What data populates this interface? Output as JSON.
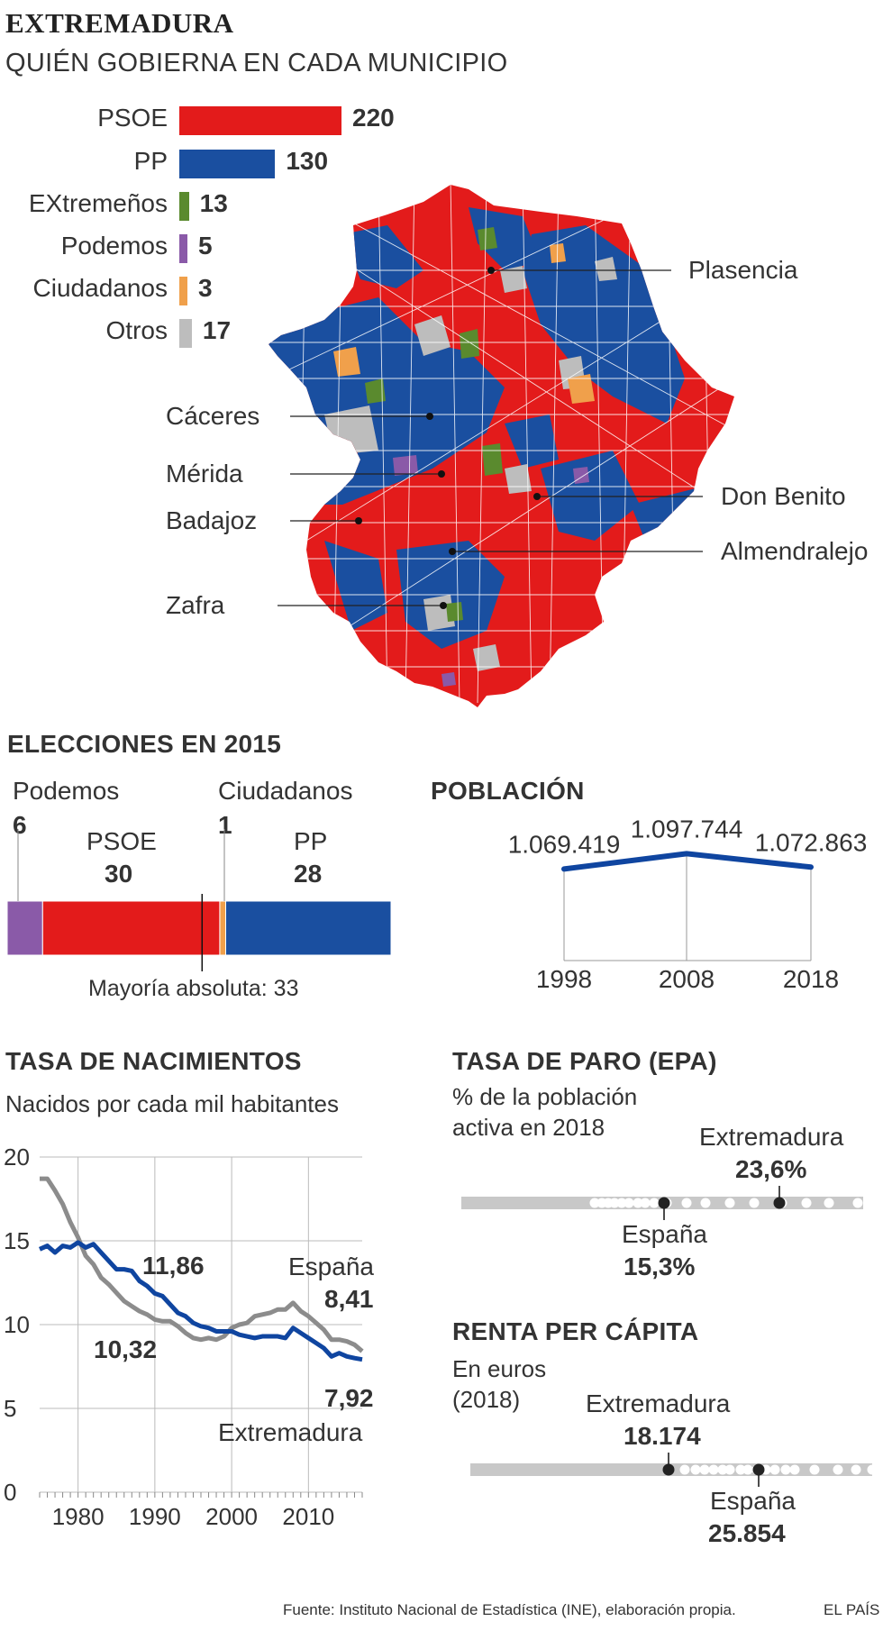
{
  "header": {
    "title": "EXTREMADURA",
    "subtitle": "QUIÉN GOBIERNA EN CADA MUNICIPIO"
  },
  "colors": {
    "psoe": "#e31b1b",
    "pp": "#1a4fa0",
    "extremenos": "#5a8a2e",
    "podemos": "#8a5aa8",
    "ciudadanos": "#f0a04b",
    "otros": "#bdbdbd",
    "espana_line": "#8c8c8c",
    "extremadura_line": "#0f45a0"
  },
  "map": {
    "cities": [
      "Plasencia",
      "Cáceres",
      "Mérida",
      "Badajoz",
      "Don Benito",
      "Almendralejo",
      "Zafra"
    ]
  },
  "chart_data": [
    {
      "type": "bar",
      "id": "municipios",
      "categories": [
        "PSOE",
        "PP",
        "EXtremeños",
        "Podemos",
        "Ciudadanos",
        "Otros"
      ],
      "values": [
        220,
        130,
        13,
        5,
        3,
        17
      ]
    },
    {
      "type": "bar",
      "id": "elecciones_2015",
      "title": "ELECCIONES EN 2015",
      "categories": [
        "Podemos",
        "PSOE",
        "Ciudadanos",
        "PP"
      ],
      "values": [
        6,
        30,
        1,
        28
      ],
      "annotation": "Mayoría absoluta: 33",
      "threshold": 33
    },
    {
      "type": "line",
      "id": "poblacion",
      "title": "POBLACIÓN",
      "x": [
        "1998",
        "2008",
        "2018"
      ],
      "values": [
        1069419,
        1097744,
        1072863
      ],
      "labels": [
        "1.069.419",
        "1.097.744",
        "1.072.863"
      ]
    },
    {
      "type": "line",
      "id": "nacimientos",
      "title": "TASA DE NACIMIENTOS",
      "subtitle": "Nacidos por cada mil habitantes",
      "xticks": [
        "1980",
        "1990",
        "2000",
        "2010"
      ],
      "yticks": [
        "0",
        "5",
        "10",
        "15",
        "20"
      ],
      "ylim": [
        0,
        20
      ],
      "xlim": [
        1975,
        2017
      ],
      "x": [
        1975,
        1976,
        1977,
        1978,
        1979,
        1980,
        1981,
        1982,
        1983,
        1984,
        1985,
        1986,
        1987,
        1988,
        1989,
        1990,
        1991,
        1992,
        1993,
        1994,
        1995,
        1996,
        1997,
        1998,
        1999,
        2000,
        2001,
        2002,
        2003,
        2004,
        2005,
        2006,
        2007,
        2008,
        2009,
        2010,
        2011,
        2012,
        2013,
        2014,
        2015,
        2016,
        2017
      ],
      "series": [
        {
          "name": "España",
          "values": [
            18.7,
            18.7,
            18.0,
            17.2,
            16.1,
            15.2,
            14.1,
            13.6,
            12.8,
            12.4,
            11.9,
            11.4,
            11.1,
            10.8,
            10.6,
            10.3,
            10.2,
            10.2,
            9.9,
            9.5,
            9.2,
            9.1,
            9.2,
            9.1,
            9.3,
            9.8,
            10.0,
            10.1,
            10.5,
            10.6,
            10.7,
            10.9,
            10.9,
            11.3,
            10.8,
            10.5,
            10.1,
            9.7,
            9.1,
            9.1,
            9.0,
            8.8,
            8.41
          ]
        },
        {
          "name": "Extremadura",
          "values": [
            14.5,
            14.7,
            14.3,
            14.7,
            14.6,
            14.9,
            14.6,
            14.8,
            14.3,
            13.8,
            13.3,
            13.3,
            13.2,
            12.6,
            12.3,
            11.86,
            11.7,
            11.2,
            10.7,
            10.5,
            10.1,
            9.9,
            9.8,
            9.6,
            9.6,
            9.6,
            9.4,
            9.3,
            9.2,
            9.3,
            9.3,
            9.3,
            9.2,
            9.8,
            9.5,
            9.2,
            8.9,
            8.6,
            8.1,
            8.3,
            8.1,
            8.0,
            7.92
          ]
        }
      ],
      "annotations": [
        "11,86",
        "10,32",
        "8,41",
        "7,92"
      ]
    },
    {
      "type": "scatter",
      "id": "paro",
      "title": "TASA DE PARO (EPA)",
      "subtitle": [
        "% de la población",
        "activa en 2018"
      ],
      "highlights": [
        {
          "name": "Extremadura",
          "value": 23.6,
          "label": "23,6%"
        },
        {
          "name": "España",
          "value": 15.3,
          "label": "15,3%"
        }
      ]
    },
    {
      "type": "scatter",
      "id": "renta",
      "title": "RENTA PER CÁPITA",
      "subtitle": [
        "En euros",
        "(2018)"
      ],
      "highlights": [
        {
          "name": "Extremadura",
          "value": 18174,
          "label": "18.174"
        },
        {
          "name": "España",
          "value": 25854,
          "label": "25.854"
        }
      ]
    }
  ],
  "footer": {
    "source": "Fuente: Instituto Nacional de Estadística (INE), elaboración propia.",
    "brand": "EL PAÍS"
  }
}
